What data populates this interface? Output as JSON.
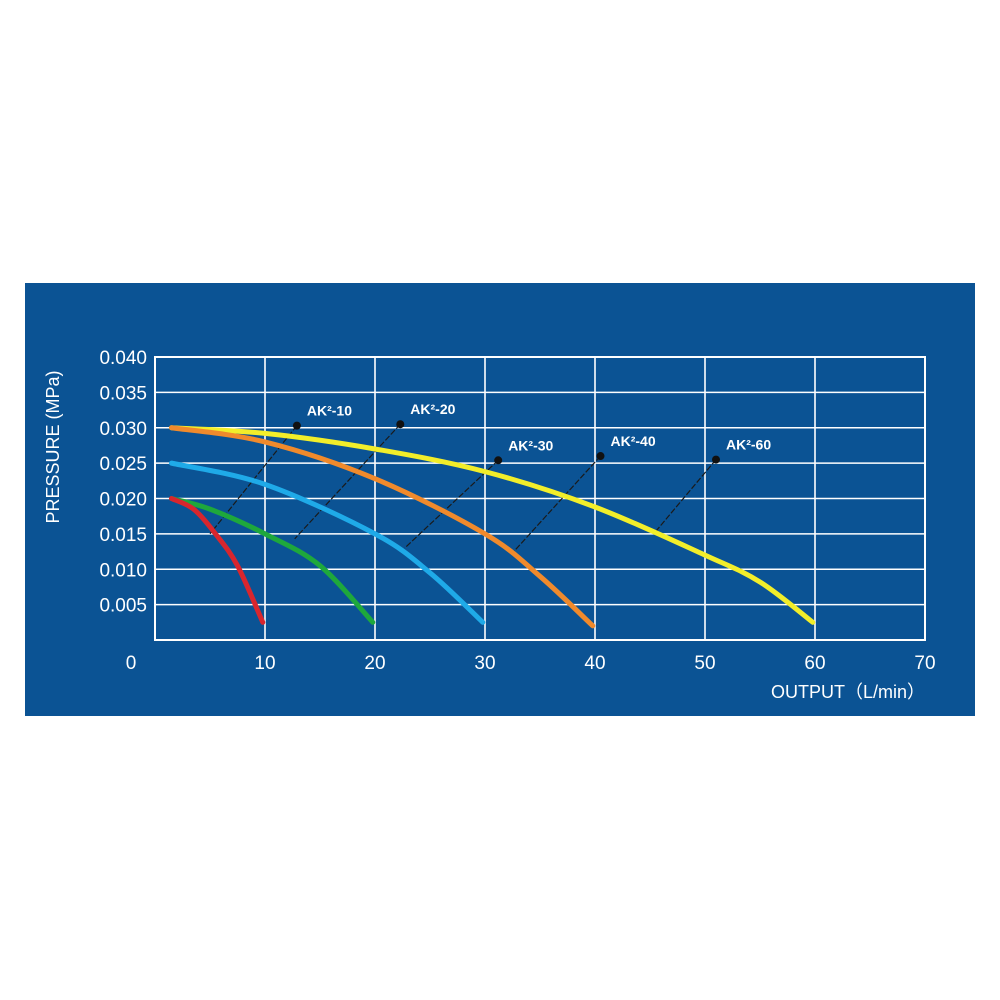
{
  "chart_data": {
    "type": "line",
    "title": "",
    "xlabel": "OUTPUT（L/min）",
    "ylabel": "PRESSURE (MPa)",
    "xlim": [
      0,
      70
    ],
    "ylim": [
      0,
      0.04
    ],
    "x_ticks": [
      "0",
      "10",
      "20",
      "30",
      "40",
      "50",
      "60",
      "70"
    ],
    "x_tick_values": [
      0,
      10,
      20,
      30,
      40,
      50,
      60,
      70
    ],
    "y_ticks": [
      "0.040",
      "0.035",
      "0.030",
      "0.025",
      "0.020",
      "0.015",
      "0.010",
      "0.005"
    ],
    "y_tick_values": [
      0.04,
      0.035,
      0.03,
      0.025,
      0.02,
      0.015,
      0.01,
      0.005
    ],
    "grid": true,
    "background_color": "#0b5394",
    "grid_color": "#ffffff",
    "series": [
      {
        "name": "AK²-10",
        "color": "#d8262e",
        "points": [
          [
            1.5,
            0.02
          ],
          [
            3.5,
            0.0185
          ],
          [
            5.5,
            0.015
          ],
          [
            7.5,
            0.0105
          ],
          [
            9.8,
            0.0025
          ]
        ],
        "label_anchor": [
          12.9,
          0.0303
        ],
        "leader_to": [
          5.0,
          0.015
        ]
      },
      {
        "name": "AK²-20",
        "color": "#1ea83c",
        "points": [
          [
            1.5,
            0.02
          ],
          [
            5,
            0.0185
          ],
          [
            10,
            0.015
          ],
          [
            15,
            0.0105
          ],
          [
            19.8,
            0.0025
          ]
        ],
        "label_anchor": [
          22.3,
          0.0305
        ],
        "leader_to": [
          12.7,
          0.0143
        ]
      },
      {
        "name": "AK²-30",
        "color": "#1faae8",
        "points": [
          [
            1.5,
            0.025
          ],
          [
            10,
            0.022
          ],
          [
            20,
            0.015
          ],
          [
            25,
            0.0095
          ],
          [
            29.8,
            0.0025
          ]
        ],
        "label_anchor": [
          31.2,
          0.0254
        ],
        "leader_to": [
          22.7,
          0.013
        ]
      },
      {
        "name": "AK²-40",
        "color": "#f08a2c",
        "points": [
          [
            1.5,
            0.03
          ],
          [
            10,
            0.028
          ],
          [
            20,
            0.0228
          ],
          [
            30,
            0.015
          ],
          [
            35,
            0.009
          ],
          [
            39.8,
            0.002
          ]
        ],
        "label_anchor": [
          40.5,
          0.026
        ],
        "leader_to": [
          32.5,
          0.0123
        ]
      },
      {
        "name": "AK²-60",
        "color": "#f2ee2a",
        "points": [
          [
            1.5,
            0.03
          ],
          [
            10,
            0.0292
          ],
          [
            20,
            0.027
          ],
          [
            30,
            0.0238
          ],
          [
            40,
            0.0188
          ],
          [
            50,
            0.012
          ],
          [
            55,
            0.0082
          ],
          [
            59.8,
            0.0025
          ]
        ],
        "label_anchor": [
          51,
          0.0255
        ],
        "leader_to": [
          45.6,
          0.0155
        ]
      }
    ]
  }
}
